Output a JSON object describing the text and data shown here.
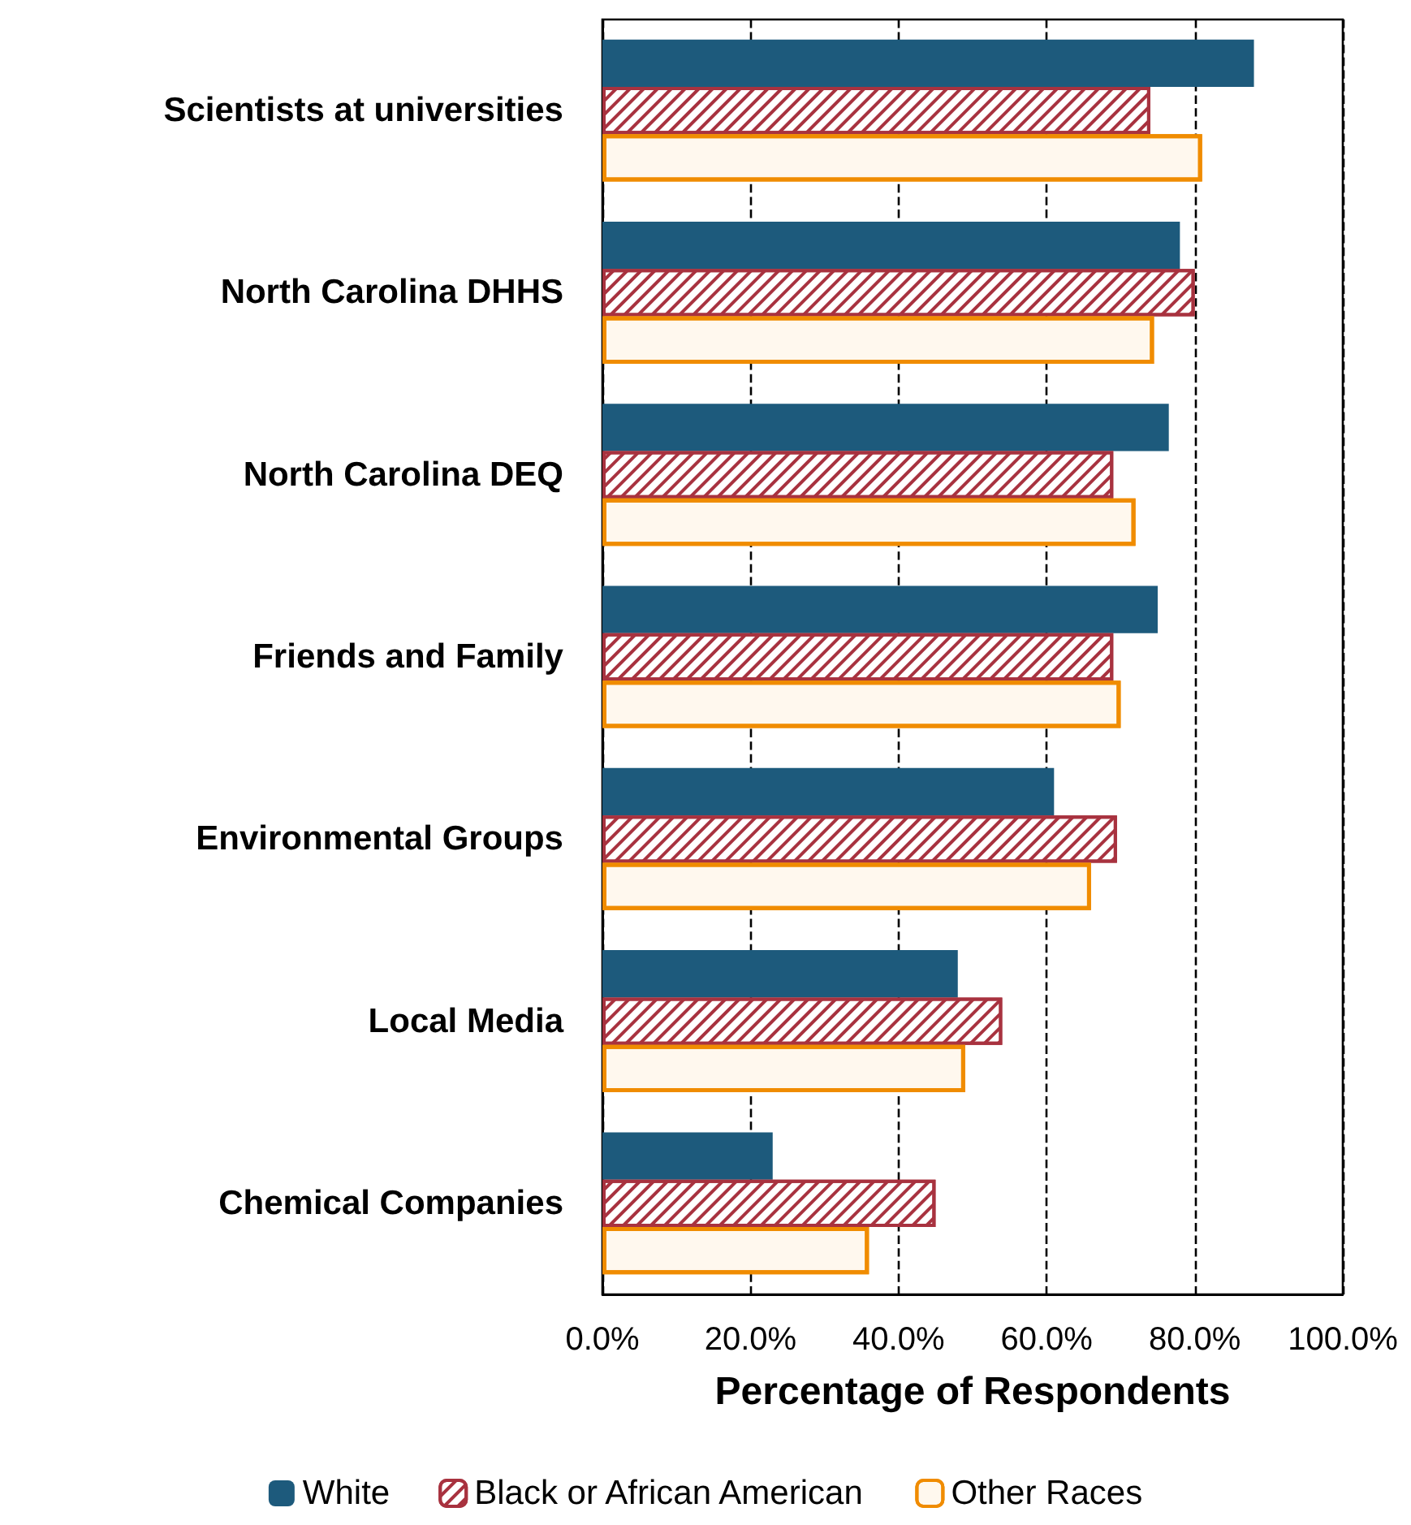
{
  "chart_data": {
    "type": "bar",
    "orientation": "horizontal",
    "xlabel": "Percentage of Respondents",
    "categories": [
      "Scientists at universities",
      "North Carolina DHHS",
      "North Carolina DEQ",
      "Friends and Family",
      "Environmental Groups",
      "Local Media",
      "Chemical Companies"
    ],
    "series": [
      {
        "name": "White",
        "color": "#1d5a7c",
        "values": [
          88,
          78,
          76.5,
          75,
          61,
          48,
          23
        ]
      },
      {
        "name": "Black or African American",
        "color": "#a8323f",
        "values": [
          74,
          80,
          69,
          69,
          69.5,
          54,
          45
        ]
      },
      {
        "name": "Other Races",
        "color": "#f08c00",
        "values": [
          81,
          74.5,
          72,
          70,
          66,
          49,
          36
        ]
      }
    ],
    "xlim": [
      0,
      100
    ],
    "xticks": [
      {
        "value": 0,
        "label": "0.0%"
      },
      {
        "value": 20,
        "label": "20.0%"
      },
      {
        "value": 40,
        "label": "40.0%"
      },
      {
        "value": 60,
        "label": "60.0%"
      },
      {
        "value": 80,
        "label": "80.0%"
      },
      {
        "value": 100,
        "label": "100.0%"
      }
    ],
    "grid": "x",
    "legend": "bottom"
  }
}
